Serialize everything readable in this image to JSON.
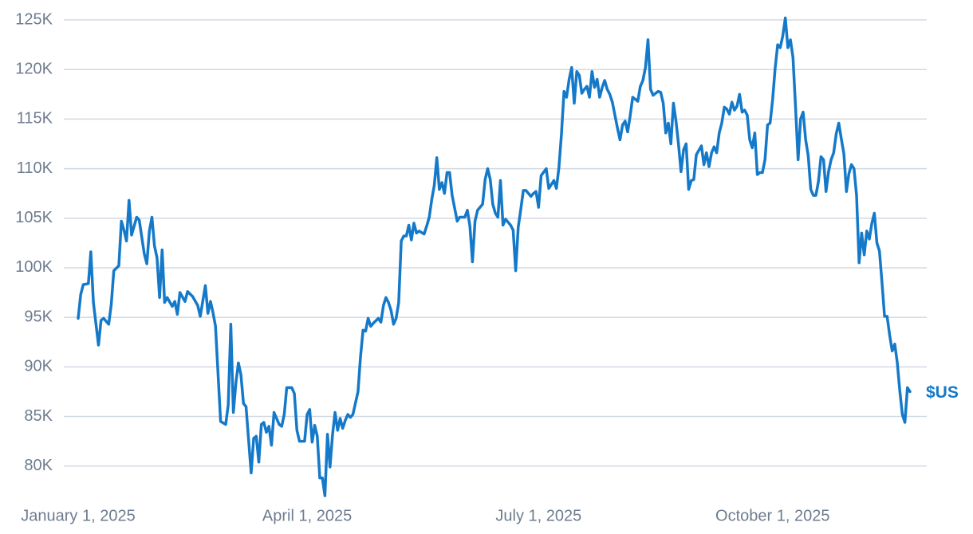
{
  "chart_data": {
    "type": "line",
    "x": [
      "2025-01-01",
      "2025-01-02",
      "2025-01-03",
      "2025-01-05",
      "2025-01-06",
      "2025-01-07",
      "2025-01-09",
      "2025-01-10",
      "2025-01-11",
      "2025-01-13",
      "2025-01-14",
      "2025-01-15",
      "2025-01-17",
      "2025-01-18",
      "2025-01-19",
      "2025-01-20",
      "2025-01-21",
      "2025-01-22",
      "2025-01-24",
      "2025-01-25",
      "2025-01-27",
      "2025-01-28",
      "2025-01-29",
      "2025-01-30",
      "2025-01-31",
      "2025-02-01",
      "2025-02-02",
      "2025-02-03",
      "2025-02-04",
      "2025-02-05",
      "2025-02-07",
      "2025-02-08",
      "2025-02-09",
      "2025-02-10",
      "2025-02-12",
      "2025-02-13",
      "2025-02-15",
      "2025-02-17",
      "2025-02-18",
      "2025-02-20",
      "2025-02-21",
      "2025-02-22",
      "2025-02-23",
      "2025-02-24",
      "2025-02-26",
      "2025-02-28",
      "2025-03-01",
      "2025-03-02",
      "2025-03-03",
      "2025-03-04",
      "2025-03-05",
      "2025-03-06",
      "2025-03-07",
      "2025-03-08",
      "2025-03-10",
      "2025-03-11",
      "2025-03-12",
      "2025-03-13",
      "2025-03-14",
      "2025-03-15",
      "2025-03-16",
      "2025-03-17",
      "2025-03-18",
      "2025-03-19",
      "2025-03-21",
      "2025-03-22",
      "2025-03-23",
      "2025-03-24",
      "2025-03-26",
      "2025-03-27",
      "2025-03-28",
      "2025-03-29",
      "2025-03-31",
      "2025-04-01",
      "2025-04-02",
      "2025-04-03",
      "2025-04-04",
      "2025-04-05",
      "2025-04-06",
      "2025-04-07",
      "2025-04-08",
      "2025-04-09",
      "2025-04-10",
      "2025-04-11",
      "2025-04-12",
      "2025-04-13",
      "2025-04-14",
      "2025-04-15",
      "2025-04-16",
      "2025-04-17",
      "2025-04-18",
      "2025-04-19",
      "2025-04-21",
      "2025-04-22",
      "2025-04-23",
      "2025-04-24",
      "2025-04-25",
      "2025-04-26",
      "2025-04-27",
      "2025-04-29",
      "2025-04-30",
      "2025-05-01",
      "2025-05-02",
      "2025-05-03",
      "2025-05-04",
      "2025-05-05",
      "2025-05-06",
      "2025-05-07",
      "2025-05-08",
      "2025-05-09",
      "2025-05-10",
      "2025-05-11",
      "2025-05-12",
      "2025-05-13",
      "2025-05-14",
      "2025-05-15",
      "2025-05-17",
      "2025-05-18",
      "2025-05-19",
      "2025-05-20",
      "2025-05-21",
      "2025-05-22",
      "2025-05-23",
      "2025-05-24",
      "2025-05-25",
      "2025-05-26",
      "2025-05-27",
      "2025-05-28",
      "2025-05-30",
      "2025-05-31",
      "2025-06-02",
      "2025-06-03",
      "2025-06-04",
      "2025-06-05",
      "2025-06-06",
      "2025-06-07",
      "2025-06-09",
      "2025-06-10",
      "2025-06-11",
      "2025-06-12",
      "2025-06-13",
      "2025-06-14",
      "2025-06-15",
      "2025-06-16",
      "2025-06-17",
      "2025-06-18",
      "2025-06-20",
      "2025-06-21",
      "2025-06-22",
      "2025-06-23",
      "2025-06-24",
      "2025-06-25",
      "2025-06-26",
      "2025-06-28",
      "2025-06-29",
      "2025-06-30",
      "2025-07-01",
      "2025-07-02",
      "2025-07-04",
      "2025-07-05",
      "2025-07-06",
      "2025-07-07",
      "2025-07-08",
      "2025-07-09",
      "2025-07-10",
      "2025-07-11",
      "2025-07-12",
      "2025-07-13",
      "2025-07-14",
      "2025-07-15",
      "2025-07-16",
      "2025-07-17",
      "2025-07-18",
      "2025-07-19",
      "2025-07-20",
      "2025-07-21",
      "2025-07-22",
      "2025-07-23",
      "2025-07-24",
      "2025-07-25",
      "2025-07-26",
      "2025-07-27",
      "2025-07-28",
      "2025-07-29",
      "2025-07-30",
      "2025-08-01",
      "2025-08-02",
      "2025-08-03",
      "2025-08-04",
      "2025-08-05",
      "2025-08-06",
      "2025-08-07",
      "2025-08-09",
      "2025-08-10",
      "2025-08-11",
      "2025-08-12",
      "2025-08-13",
      "2025-08-14",
      "2025-08-15",
      "2025-08-17",
      "2025-08-18",
      "2025-08-19",
      "2025-08-20",
      "2025-08-21",
      "2025-08-22",
      "2025-08-23",
      "2025-08-24",
      "2025-08-25",
      "2025-08-26",
      "2025-08-27",
      "2025-08-28",
      "2025-08-29",
      "2025-08-30",
      "2025-08-31",
      "2025-09-01",
      "2025-09-03",
      "2025-09-04",
      "2025-09-05",
      "2025-09-06",
      "2025-09-07",
      "2025-09-08",
      "2025-09-09",
      "2025-09-10",
      "2025-09-11",
      "2025-09-12",
      "2025-09-13",
      "2025-09-14",
      "2025-09-15",
      "2025-09-16",
      "2025-09-17",
      "2025-09-18",
      "2025-09-19",
      "2025-09-20",
      "2025-09-21",
      "2025-09-22",
      "2025-09-23",
      "2025-09-24",
      "2025-09-25",
      "2025-09-26",
      "2025-09-27",
      "2025-09-28",
      "2025-09-29",
      "2025-09-30",
      "2025-10-01",
      "2025-10-02",
      "2025-10-03",
      "2025-10-04",
      "2025-10-05",
      "2025-10-06",
      "2025-10-07",
      "2025-10-08",
      "2025-10-09",
      "2025-10-10",
      "2025-10-11",
      "2025-10-12",
      "2025-10-13",
      "2025-10-14",
      "2025-10-15",
      "2025-10-16",
      "2025-10-17",
      "2025-10-18",
      "2025-10-19",
      "2025-10-20",
      "2025-10-21",
      "2025-10-22",
      "2025-10-23",
      "2025-10-24",
      "2025-10-25",
      "2025-10-26",
      "2025-10-27",
      "2025-10-28",
      "2025-10-29",
      "2025-10-30",
      "2025-10-31",
      "2025-11-01",
      "2025-11-02",
      "2025-11-03",
      "2025-11-04",
      "2025-11-05",
      "2025-11-06",
      "2025-11-07",
      "2025-11-08",
      "2025-11-09",
      "2025-11-10",
      "2025-11-11",
      "2025-11-12",
      "2025-11-13",
      "2025-11-14",
      "2025-11-15",
      "2025-11-16",
      "2025-11-17",
      "2025-11-18",
      "2025-11-19",
      "2025-11-20",
      "2025-11-21",
      "2025-11-22",
      "2025-11-23",
      "2025-11-24"
    ],
    "series": [
      {
        "name": "$US",
        "color": "#1479c9",
        "values": [
          94900,
          97300,
          98300,
          98400,
          101600,
          96500,
          92200,
          94700,
          94900,
          94300,
          96300,
          99700,
          100200,
          104700,
          103800,
          102700,
          106800,
          103300,
          105100,
          104800,
          101400,
          100400,
          103700,
          105100,
          102200,
          101000,
          97000,
          101800,
          96500,
          97000,
          96100,
          96600,
          95300,
          97500,
          96600,
          97600,
          97100,
          96200,
          95100,
          98200,
          95400,
          96600,
          95500,
          94100,
          84500,
          84200,
          86200,
          94300,
          85400,
          88400,
          90400,
          89200,
          86300,
          86000,
          79300,
          82800,
          83000,
          80400,
          84200,
          84400,
          83400,
          84000,
          82100,
          85400,
          84200,
          84000,
          85200,
          87900,
          87900,
          87300,
          83600,
          82500,
          82500,
          85200,
          85700,
          82400,
          84100,
          83000,
          78800,
          78800,
          77000,
          83200,
          79900,
          83200,
          85400,
          83600,
          84800,
          83800,
          84600,
          85200,
          84900,
          85200,
          87500,
          91000,
          93700,
          93600,
          94900,
          94100,
          94400,
          94900,
          94500,
          96200,
          97000,
          96500,
          95700,
          94300,
          94900,
          96500,
          102700,
          103200,
          103200,
          104300,
          102800,
          104500,
          103500,
          103700,
          103400,
          104200,
          105100,
          106900,
          108300,
          111100,
          107900,
          108600,
          107500,
          109600,
          109600,
          107300,
          104700,
          105100,
          105100,
          105800,
          104200,
          100600,
          104700,
          105800,
          106400,
          108900,
          110000,
          108900,
          106400,
          105500,
          105100,
          108800,
          104300,
          104900,
          104300,
          103800,
          99700,
          104100,
          105900,
          107800,
          107800,
          107200,
          107500,
          107700,
          106100,
          109300,
          110000,
          108000,
          108400,
          108800,
          108000,
          110100,
          113500,
          117800,
          117200,
          119000,
          120200,
          116600,
          119800,
          119400,
          117600,
          118000,
          118300,
          117200,
          119800,
          118200,
          119000,
          117200,
          118200,
          118900,
          118000,
          117500,
          116700,
          114100,
          112900,
          114400,
          114800,
          113700,
          115300,
          117200,
          116800,
          118300,
          118900,
          120200,
          123000,
          118000,
          117400,
          117800,
          117700,
          116600,
          113600,
          114600,
          112500,
          116600,
          114800,
          112500,
          109700,
          111900,
          112500,
          107900,
          108800,
          108900,
          111400,
          112300,
          110400,
          111600,
          110200,
          111600,
          112200,
          111600,
          113600,
          114600,
          116200,
          116000,
          115500,
          116700,
          115900,
          116300,
          117500,
          115700,
          115900,
          115400,
          112900,
          112100,
          113600,
          109400,
          109600,
          109600,
          110900,
          114400,
          114600,
          117000,
          120200,
          122500,
          122200,
          123400,
          125200,
          122200,
          123000,
          121200,
          116200,
          110900,
          115000,
          115700,
          112900,
          111300,
          107900,
          107300,
          107300,
          108700,
          111200,
          110900,
          107700,
          109700,
          110900,
          111600,
          113500,
          114600,
          113000,
          111500,
          107700,
          109500,
          110400,
          110000,
          107300,
          100500,
          103500,
          101300,
          103700,
          102900,
          104500,
          105500,
          102500,
          101700,
          98500,
          95100,
          95100,
          93200,
          91600,
          92300,
          90400,
          87600,
          85200,
          84400,
          87900,
          87500
        ]
      }
    ],
    "xlim": [
      "2025-01-01",
      "2025-11-24"
    ],
    "xticks": [
      {
        "value": "2025-01-01",
        "label": "January 1, 2025"
      },
      {
        "value": "2025-04-01",
        "label": "April 1, 2025"
      },
      {
        "value": "2025-07-01",
        "label": "July 1, 2025"
      },
      {
        "value": "2025-10-01",
        "label": "October 1, 2025"
      }
    ],
    "ylim": [
      77000,
      125000
    ],
    "yticks": [
      {
        "value": 80000,
        "label": "80K"
      },
      {
        "value": 85000,
        "label": "85K"
      },
      {
        "value": 90000,
        "label": "90K"
      },
      {
        "value": 95000,
        "label": "95K"
      },
      {
        "value": 100000,
        "label": "100K"
      },
      {
        "value": 105000,
        "label": "105K"
      },
      {
        "value": 110000,
        "label": "110K"
      },
      {
        "value": 115000,
        "label": "115K"
      },
      {
        "value": 120000,
        "label": "120K"
      },
      {
        "value": 125000,
        "label": "125K"
      }
    ],
    "grid": true
  }
}
